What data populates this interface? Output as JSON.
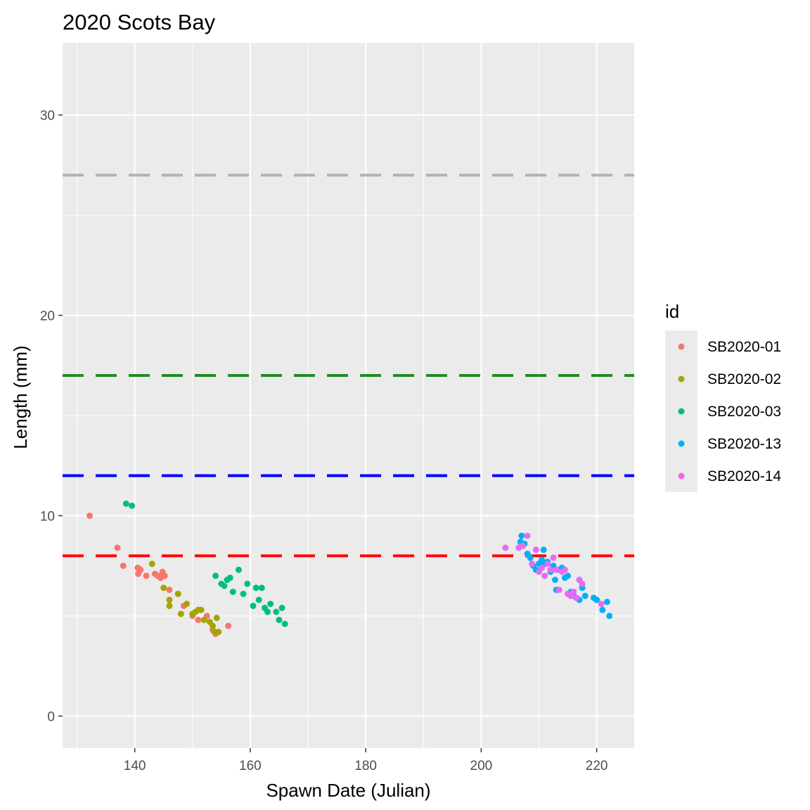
{
  "chart_data": {
    "type": "scatter",
    "title": "2020 Scots Bay",
    "xlabel": "Spawn Date (Julian)",
    "ylabel": "Length (mm)",
    "xlim": [
      127.5,
      226.5
    ],
    "ylim": [
      -1.6,
      33.6
    ],
    "x_ticks": [
      140,
      160,
      180,
      200,
      220
    ],
    "y_ticks": [
      0,
      10,
      20,
      30
    ],
    "x_tick_labels": [
      "140",
      "160",
      "180",
      "200",
      "220"
    ],
    "y_tick_labels": [
      "0",
      "10",
      "20",
      "30"
    ],
    "grid": true,
    "legend_title": "id",
    "legend_position": "right",
    "reference_lines": [
      {
        "y": 27,
        "color": "#b3b3b3",
        "style": "dashed"
      },
      {
        "y": 17,
        "color": "#228b22",
        "style": "dashed"
      },
      {
        "y": 12,
        "color": "#0000ff",
        "style": "dashed"
      },
      {
        "y": 8,
        "color": "#ff0000",
        "style": "dashed"
      }
    ],
    "series": [
      {
        "name": "SB2020-01",
        "color": "#F8766D",
        "points": [
          [
            132.2,
            10.0
          ],
          [
            137.0,
            8.4
          ],
          [
            138.0,
            7.5
          ],
          [
            140.5,
            7.4
          ],
          [
            140.6,
            7.1
          ],
          [
            141.0,
            7.3
          ],
          [
            142.0,
            7.0
          ],
          [
            143.5,
            7.1
          ],
          [
            144.0,
            7.0
          ],
          [
            144.5,
            6.9
          ],
          [
            144.8,
            7.2
          ],
          [
            145.2,
            7.0
          ],
          [
            146.0,
            6.3
          ],
          [
            148.5,
            5.5
          ],
          [
            150.0,
            5.0
          ],
          [
            151.0,
            4.8
          ],
          [
            152.5,
            5.0
          ],
          [
            153.5,
            4.3
          ],
          [
            154.0,
            4.1
          ],
          [
            156.2,
            4.5
          ]
        ]
      },
      {
        "name": "SB2020-02",
        "color": "#A3A500",
        "points": [
          [
            143.0,
            7.6
          ],
          [
            145.0,
            6.4
          ],
          [
            146.0,
            5.8
          ],
          [
            146.0,
            5.5
          ],
          [
            147.5,
            6.1
          ],
          [
            148.0,
            5.1
          ],
          [
            149.0,
            5.6
          ],
          [
            150.0,
            5.1
          ],
          [
            150.5,
            5.2
          ],
          [
            151.0,
            5.3
          ],
          [
            151.5,
            5.3
          ],
          [
            152.0,
            4.8
          ],
          [
            153.0,
            4.7
          ],
          [
            153.5,
            4.5
          ],
          [
            153.8,
            4.2
          ],
          [
            154.2,
            4.9
          ],
          [
            154.5,
            4.2
          ]
        ]
      },
      {
        "name": "SB2020-03",
        "color": "#00BF7D",
        "points": [
          [
            138.5,
            10.6
          ],
          [
            139.5,
            10.5
          ],
          [
            154.0,
            7.0
          ],
          [
            155.0,
            6.6
          ],
          [
            155.5,
            6.5
          ],
          [
            156.0,
            6.8
          ],
          [
            156.5,
            6.9
          ],
          [
            157.0,
            6.2
          ],
          [
            158.0,
            7.3
          ],
          [
            158.8,
            6.1
          ],
          [
            159.5,
            6.6
          ],
          [
            160.5,
            5.5
          ],
          [
            161.0,
            6.4
          ],
          [
            161.5,
            5.8
          ],
          [
            162.0,
            6.4
          ],
          [
            162.5,
            5.4
          ],
          [
            163.0,
            5.2
          ],
          [
            163.5,
            5.6
          ],
          [
            164.5,
            5.2
          ],
          [
            165.0,
            4.8
          ],
          [
            165.5,
            5.4
          ],
          [
            166.0,
            4.6
          ]
        ]
      },
      {
        "name": "SB2020-13",
        "color": "#00B0F6",
        "points": [
          [
            206.8,
            8.7
          ],
          [
            207.0,
            9.0
          ],
          [
            207.5,
            8.6
          ],
          [
            208.0,
            8.1
          ],
          [
            208.5,
            7.9
          ],
          [
            209.0,
            7.5
          ],
          [
            209.5,
            7.3
          ],
          [
            210.0,
            7.6
          ],
          [
            210.5,
            7.8
          ],
          [
            210.8,
            8.3
          ],
          [
            211.0,
            7.6
          ],
          [
            211.5,
            7.7
          ],
          [
            212.0,
            7.2
          ],
          [
            212.5,
            7.5
          ],
          [
            212.8,
            6.8
          ],
          [
            213.0,
            6.3
          ],
          [
            213.5,
            7.3
          ],
          [
            214.0,
            7.4
          ],
          [
            214.5,
            6.9
          ],
          [
            215.0,
            7.0
          ],
          [
            215.5,
            6.2
          ],
          [
            216.0,
            6.0
          ],
          [
            216.5,
            5.9
          ],
          [
            217.0,
            5.8
          ],
          [
            217.5,
            6.4
          ],
          [
            218.0,
            6.0
          ],
          [
            219.5,
            5.9
          ],
          [
            220.0,
            5.8
          ],
          [
            221.0,
            5.3
          ],
          [
            221.8,
            5.7
          ],
          [
            222.2,
            5.0
          ]
        ]
      },
      {
        "name": "SB2020-14",
        "color": "#E76BF3",
        "points": [
          [
            204.2,
            8.4
          ],
          [
            206.5,
            8.4
          ],
          [
            207.2,
            8.5
          ],
          [
            208.0,
            9.0
          ],
          [
            208.8,
            7.6
          ],
          [
            209.5,
            8.3
          ],
          [
            210.0,
            7.2
          ],
          [
            210.5,
            7.4
          ],
          [
            211.0,
            7.0
          ],
          [
            211.5,
            7.6
          ],
          [
            212.0,
            7.3
          ],
          [
            212.5,
            7.9
          ],
          [
            213.0,
            7.3
          ],
          [
            213.5,
            6.3
          ],
          [
            214.0,
            7.2
          ],
          [
            214.5,
            7.3
          ],
          [
            215.0,
            6.1
          ],
          [
            215.5,
            6.0
          ],
          [
            216.0,
            6.2
          ],
          [
            216.5,
            5.9
          ],
          [
            217.0,
            6.8
          ],
          [
            217.5,
            6.6
          ],
          [
            220.8,
            5.6
          ]
        ]
      }
    ]
  }
}
